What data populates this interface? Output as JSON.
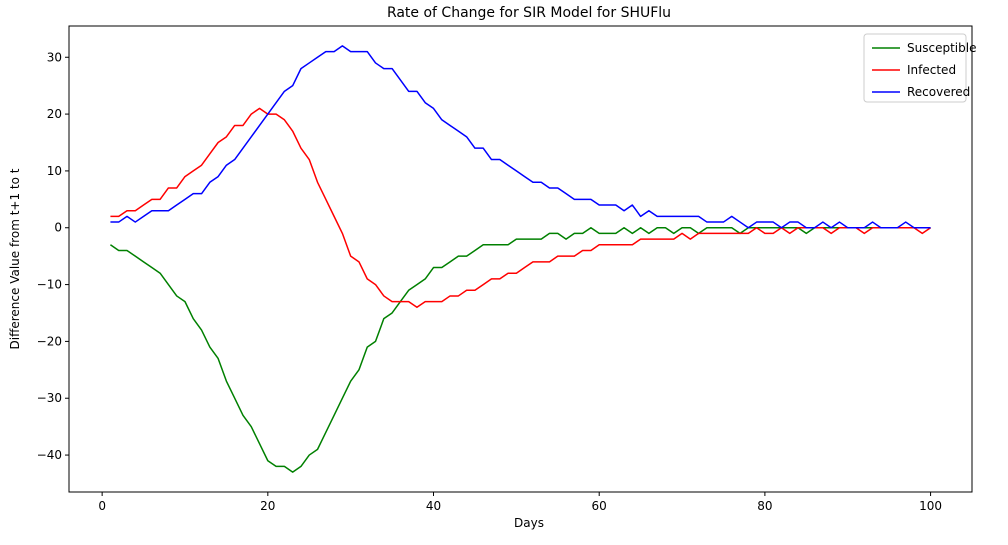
{
  "chart_data": {
    "type": "line",
    "title": "Rate of Change for SIR Model for SHUFlu",
    "xlabel": "Days",
    "ylabel": "Difference Value from t+1 to t",
    "xlim": [
      -4,
      105
    ],
    "ylim": [
      -46.5,
      35.5
    ],
    "xticks": [
      0,
      20,
      40,
      60,
      80,
      100
    ],
    "yticks": [
      -40,
      -30,
      -20,
      -10,
      0,
      10,
      20,
      30
    ],
    "grid": false,
    "legend_position": "top-right",
    "x": [
      1,
      2,
      3,
      4,
      5,
      6,
      7,
      8,
      9,
      10,
      11,
      12,
      13,
      14,
      15,
      16,
      17,
      18,
      19,
      20,
      21,
      22,
      23,
      24,
      25,
      26,
      27,
      28,
      29,
      30,
      31,
      32,
      33,
      34,
      35,
      36,
      37,
      38,
      39,
      40,
      41,
      42,
      43,
      44,
      45,
      46,
      47,
      48,
      49,
      50,
      51,
      52,
      53,
      54,
      55,
      56,
      57,
      58,
      59,
      60,
      61,
      62,
      63,
      64,
      65,
      66,
      67,
      68,
      69,
      70,
      71,
      72,
      73,
      74,
      75,
      76,
      77,
      78,
      79,
      80,
      81,
      82,
      83,
      84,
      85,
      86,
      87,
      88,
      89,
      90,
      91,
      92,
      93,
      94,
      95,
      96,
      97,
      98,
      99,
      100
    ],
    "series": [
      {
        "name": "Susceptible",
        "color": "#008000",
        "values": [
          -3,
          -4,
          -4,
          -5,
          -6,
          -7,
          -8,
          -10,
          -12,
          -13,
          -16,
          -18,
          -21,
          -23,
          -27,
          -30,
          -33,
          -35,
          -38,
          -41,
          -42,
          -42,
          -43,
          -42,
          -40,
          -39,
          -36,
          -33,
          -30,
          -27,
          -25,
          -21,
          -20,
          -16,
          -15,
          -13,
          -11,
          -10,
          -9,
          -7,
          -7,
          -6,
          -5,
          -5,
          -4,
          -3,
          -3,
          -3,
          -3,
          -2,
          -2,
          -2,
          -2,
          -1,
          -1,
          -2,
          -1,
          -1,
          0,
          -1,
          -1,
          -1,
          0,
          -1,
          0,
          -1,
          0,
          0,
          -1,
          0,
          0,
          -1,
          0,
          0,
          0,
          0,
          -1,
          0,
          0,
          0,
          0,
          0,
          0,
          0,
          -1,
          0,
          0,
          0,
          0,
          0,
          0,
          0,
          0,
          0,
          0,
          0,
          0,
          0,
          0,
          0
        ]
      },
      {
        "name": "Infected",
        "color": "#ff0000",
        "values": [
          2,
          2,
          3,
          3,
          4,
          5,
          5,
          7,
          7,
          9,
          10,
          11,
          13,
          15,
          16,
          18,
          18,
          20,
          21,
          20,
          20,
          19,
          17,
          14,
          12,
          8,
          5,
          2,
          -1,
          -5,
          -6,
          -9,
          -10,
          -12,
          -13,
          -13,
          -13,
          -14,
          -13,
          -13,
          -13,
          -12,
          -12,
          -11,
          -11,
          -10,
          -9,
          -9,
          -8,
          -8,
          -7,
          -6,
          -6,
          -6,
          -5,
          -5,
          -5,
          -4,
          -4,
          -3,
          -3,
          -3,
          -3,
          -3,
          -2,
          -2,
          -2,
          -2,
          -2,
          -1,
          -2,
          -1,
          -1,
          -1,
          -1,
          -1,
          -1,
          -1,
          0,
          -1,
          -1,
          0,
          -1,
          0,
          0,
          0,
          0,
          -1,
          0,
          0,
          0,
          -1,
          0,
          0,
          0,
          0,
          0,
          0,
          -1,
          0
        ]
      },
      {
        "name": "Recovered",
        "color": "#0000ff",
        "values": [
          1,
          1,
          2,
          1,
          2,
          3,
          3,
          3,
          4,
          5,
          6,
          6,
          8,
          9,
          11,
          12,
          14,
          16,
          18,
          20,
          22,
          24,
          25,
          28,
          29,
          30,
          31,
          31,
          32,
          31,
          31,
          31,
          29,
          28,
          28,
          26,
          24,
          24,
          22,
          21,
          19,
          18,
          17,
          16,
          14,
          14,
          12,
          12,
          11,
          10,
          9,
          8,
          8,
          7,
          7,
          6,
          5,
          5,
          5,
          4,
          4,
          4,
          3,
          4,
          2,
          3,
          2,
          2,
          2,
          2,
          2,
          2,
          1,
          1,
          1,
          2,
          1,
          0,
          1,
          1,
          1,
          0,
          1,
          1,
          0,
          0,
          1,
          0,
          1,
          0,
          0,
          0,
          1,
          0,
          0,
          0,
          1,
          0,
          0,
          0
        ]
      }
    ]
  }
}
